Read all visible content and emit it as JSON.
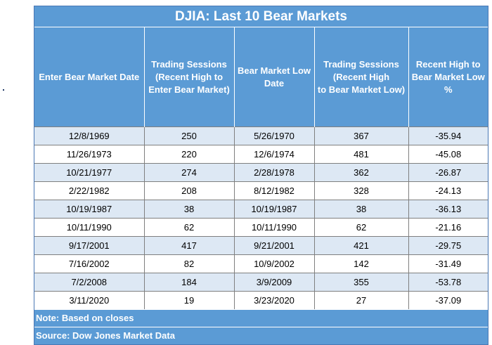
{
  "title": "DJIA: Last 10 Bear Markets",
  "headers": [
    [
      "Enter Bear Market Date"
    ],
    [
      "Trading Sessions",
      "(Recent High to",
      "Enter Bear Market)"
    ],
    [
      "Bear Market Low",
      "Date"
    ],
    [
      "Trading Sessions",
      "(Recent High",
      "to Bear Market Low)"
    ],
    [
      "Recent High to",
      "Bear Market Low",
      "%"
    ]
  ],
  "rows": [
    [
      "12/8/1969",
      "250",
      "5/26/1970",
      "367",
      "-35.94"
    ],
    [
      "11/26/1973",
      "220",
      "12/6/1974",
      "481",
      "-45.08"
    ],
    [
      "10/21/1977",
      "274",
      "2/28/1978",
      "362",
      "-26.87"
    ],
    [
      "2/22/1982",
      "208",
      "8/12/1982",
      "328",
      "-24.13"
    ],
    [
      "10/19/1987",
      "38",
      "10/19/1987",
      "38",
      "-36.13"
    ],
    [
      "10/11/1990",
      "62",
      "10/11/1990",
      "62",
      "-21.16"
    ],
    [
      "9/17/2001",
      "417",
      "9/21/2001",
      "421",
      "-29.75"
    ],
    [
      "7/16/2002",
      "82",
      "10/9/2002",
      "142",
      "-31.49"
    ],
    [
      "7/2/2008",
      "184",
      "3/9/2009",
      "355",
      "-53.78"
    ],
    [
      "3/11/2020",
      "19",
      "3/23/2020",
      "27",
      "-37.09"
    ]
  ],
  "note": "Note: Based on closes",
  "source": "Source: Dow Jones Market Data"
}
